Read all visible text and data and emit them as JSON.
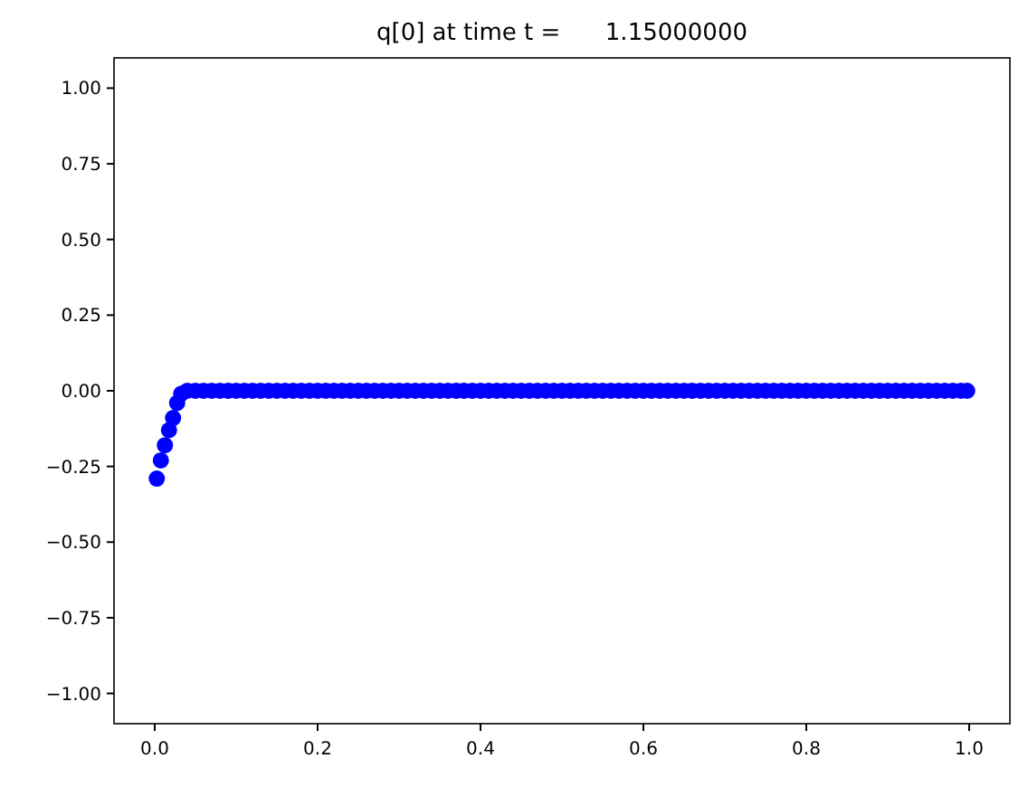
{
  "chart_data": {
    "type": "scatter",
    "title": "q[0] at time t =      1.15000000",
    "x": [
      0.0025,
      0.0075,
      0.0125,
      0.0175,
      0.0225,
      0.0275,
      0.0325,
      0.04,
      0.05,
      0.06,
      0.07,
      0.08,
      0.09,
      0.1,
      0.11,
      0.12,
      0.13,
      0.14,
      0.15,
      0.16,
      0.17,
      0.18,
      0.19,
      0.2,
      0.21,
      0.22,
      0.23,
      0.24,
      0.25,
      0.26,
      0.27,
      0.28,
      0.29,
      0.3,
      0.31,
      0.32,
      0.33,
      0.34,
      0.35,
      0.36,
      0.37,
      0.38,
      0.39,
      0.4,
      0.41,
      0.42,
      0.43,
      0.44,
      0.45,
      0.46,
      0.47,
      0.48,
      0.49,
      0.5,
      0.51,
      0.52,
      0.53,
      0.54,
      0.55,
      0.56,
      0.57,
      0.58,
      0.59,
      0.6,
      0.61,
      0.62,
      0.63,
      0.64,
      0.65,
      0.66,
      0.67,
      0.68,
      0.69,
      0.7,
      0.71,
      0.72,
      0.73,
      0.74,
      0.75,
      0.76,
      0.77,
      0.78,
      0.79,
      0.8,
      0.81,
      0.82,
      0.83,
      0.84,
      0.85,
      0.86,
      0.87,
      0.88,
      0.89,
      0.9,
      0.91,
      0.92,
      0.93,
      0.94,
      0.95,
      0.96,
      0.97,
      0.98,
      0.99,
      0.9975
    ],
    "series": [
      {
        "color": "#0000ff",
        "values": [
          -0.29,
          -0.23,
          -0.18,
          -0.13,
          -0.09,
          -0.04,
          -0.01,
          0,
          0,
          0,
          0,
          0,
          0,
          0,
          0,
          0,
          0,
          0,
          0,
          0,
          0,
          0,
          0,
          0,
          0,
          0,
          0,
          0,
          0,
          0,
          0,
          0,
          0,
          0,
          0,
          0,
          0,
          0,
          0,
          0,
          0,
          0,
          0,
          0,
          0,
          0,
          0,
          0,
          0,
          0,
          0,
          0,
          0,
          0,
          0,
          0,
          0,
          0,
          0,
          0,
          0,
          0,
          0,
          0,
          0,
          0,
          0,
          0,
          0,
          0,
          0,
          0,
          0,
          0,
          0,
          0,
          0,
          0,
          0,
          0,
          0,
          0,
          0,
          0,
          0,
          0,
          0,
          0,
          0,
          0,
          0,
          0,
          0,
          0,
          0,
          0,
          0,
          0,
          0,
          0,
          0,
          0,
          0,
          0
        ]
      }
    ],
    "marker": "circle",
    "xlim": [
      -0.05,
      1.05
    ],
    "xticks": [
      {
        "value": 0,
        "label": "0.0"
      },
      {
        "value": 0.2,
        "label": "0.2"
      },
      {
        "value": 0.4,
        "label": "0.4"
      },
      {
        "value": 0.6,
        "label": "0.6"
      },
      {
        "value": 0.8,
        "label": "0.8"
      },
      {
        "value": 1,
        "label": "1.0"
      }
    ],
    "ylim": [
      -1.1,
      1.1
    ],
    "yticks": [
      {
        "value": -1,
        "label": "−1.00"
      },
      {
        "value": -0.75,
        "label": "−0.75"
      },
      {
        "value": -0.5,
        "label": "−0.50"
      },
      {
        "value": -0.25,
        "label": "−0.25"
      },
      {
        "value": 0,
        "label": "0.00"
      },
      {
        "value": 0.25,
        "label": "0.25"
      },
      {
        "value": 0.5,
        "label": "0.50"
      },
      {
        "value": 0.75,
        "label": "0.75"
      },
      {
        "value": 1,
        "label": "1.00"
      }
    ]
  }
}
